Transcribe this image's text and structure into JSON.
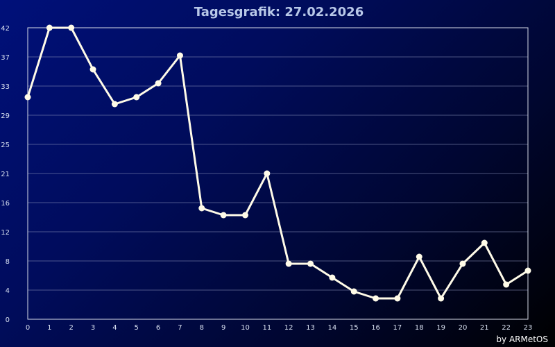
{
  "chart_data": {
    "type": "line",
    "title": "Tagesgrafik: 27.02.2026",
    "credit": "by ARMetOS",
    "xlabel": "",
    "ylabel": "",
    "x": [
      0,
      1,
      2,
      3,
      4,
      5,
      6,
      7,
      8,
      9,
      10,
      11,
      12,
      13,
      14,
      15,
      16,
      17,
      18,
      19,
      20,
      21,
      22,
      23
    ],
    "x_ticks": [
      "0",
      "1",
      "2",
      "3",
      "4",
      "5",
      "6",
      "7",
      "8",
      "9",
      "10",
      "11",
      "12",
      "13",
      "14",
      "15",
      "16",
      "17",
      "18",
      "19",
      "20",
      "21",
      "22",
      "23"
    ],
    "y_ticks": [
      "0",
      "4",
      "8",
      "12",
      "16",
      "21",
      "25",
      "29",
      "33",
      "37",
      "42"
    ],
    "ylim": [
      0,
      42
    ],
    "grid": true,
    "series": [
      {
        "values": [
          32,
          42,
          42,
          36,
          31,
          32,
          34,
          38,
          16,
          15,
          15,
          21,
          8,
          8,
          6,
          4,
          3,
          3,
          9,
          3,
          8,
          11,
          5,
          7
        ],
        "color": "#fffbe8"
      }
    ],
    "colors": {
      "background_start": "#00107a",
      "background_end": "#000000",
      "line": "#fffbe8",
      "grid": "#8890b8",
      "text": "#d8e0f0"
    }
  }
}
